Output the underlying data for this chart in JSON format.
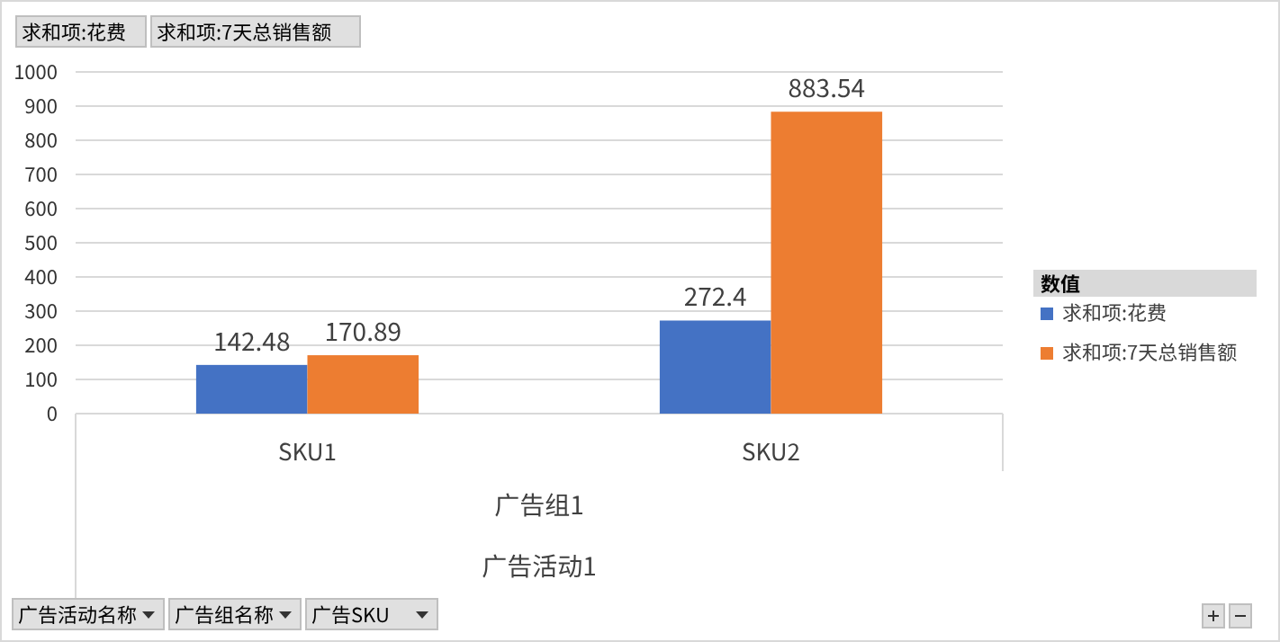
{
  "chart_data": {
    "type": "bar",
    "categories": [
      "SKU1",
      "SKU2"
    ],
    "series": [
      {
        "name": "求和项:花费",
        "color": "#4472c4",
        "values": [
          142.48,
          272.4
        ]
      },
      {
        "name": "求和项:7天总销售额",
        "color": "#ed7d31",
        "values": [
          170.89,
          883.54
        ]
      }
    ],
    "ylim": [
      0,
      1000
    ],
    "yticks": [
      0,
      100,
      200,
      300,
      400,
      500,
      600,
      700,
      800,
      900,
      1000
    ],
    "grid": "y",
    "legend": "right",
    "legend_title": "数值",
    "data_labels": true,
    "annotations": [
      "广告组1",
      "广告活动1",
      "求和项:花费",
      "求和项:7天总销售额",
      "广告活动名称",
      "广告组名称",
      "广告SKU"
    ]
  }
}
